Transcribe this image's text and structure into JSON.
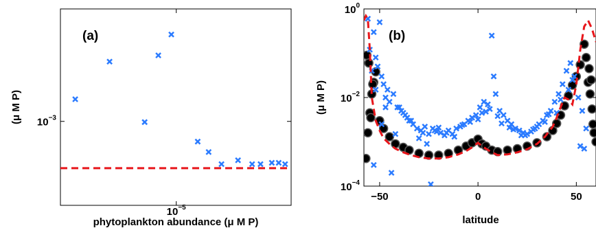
{
  "chart_data": [
    {
      "type": "scatter",
      "panel_label": "(a)",
      "xlabel": "phytoplankton abundance (μ M P)",
      "ylabel": "(μ M P)",
      "xscale": "log",
      "yscale": "log",
      "xlim": [
        3e-06,
        3.3e-05
      ],
      "ylim": [
        0.00032,
        0.0046
      ],
      "xticks": [
        {
          "value": 1e-05,
          "base": "10",
          "exp": "−5"
        }
      ],
      "yticks": [
        {
          "value": 0.001,
          "base": "10",
          "exp": "−3"
        }
      ],
      "grid": false,
      "series": [
        {
          "marker": "x",
          "color": "#2b7bff",
          "x": [
            3.5e-06,
            5e-06,
            7.2e-06,
            8.3e-06,
            9.5e-06,
            1.25e-05,
            1.4e-05,
            1.6e-05,
            1.9e-05,
            2.2e-05,
            2.4e-05,
            2.7e-05,
            2.9e-05,
            3.1e-05
          ],
          "y": [
            0.00135,
            0.00225,
            0.00099,
            0.00245,
            0.00325,
            0.00076,
            0.00066,
            0.00056,
            0.00059,
            0.00056,
            0.00056,
            0.00057,
            0.00057,
            0.00056
          ]
        },
        {
          "style": "dashed-line",
          "color": "#e8161b",
          "x": [
            3e-06,
            3.3e-05
          ],
          "y": [
            0.00053,
            0.00053
          ]
        }
      ]
    },
    {
      "type": "scatter",
      "panel_label": "(b)",
      "xlabel": "latitude",
      "ylabel": "(μ M P)",
      "yscale": "log",
      "xlim": [
        -58,
        60
      ],
      "ylim": [
        0.0001,
        1
      ],
      "xticks": [
        -50,
        0,
        50
      ],
      "yticks": [
        {
          "value": 0.0001,
          "base": "10",
          "exp": "−4"
        },
        {
          "value": 0.01,
          "base": "10",
          "exp": "−2"
        },
        {
          "value": 1,
          "base": "10",
          "exp": "0"
        }
      ],
      "grid": false,
      "series": [
        {
          "marker": "circle",
          "color": "#000000",
          "x": [
            -57,
            -56,
            -55,
            -54,
            -53,
            -52,
            -50,
            -48,
            -45,
            -42,
            -38,
            -35,
            -30,
            -25,
            -20,
            -15,
            -10,
            -6,
            -3,
            0,
            2,
            4,
            7,
            10,
            15,
            20,
            25,
            30,
            35,
            38,
            40,
            42,
            44,
            46,
            48,
            50,
            52,
            54,
            55,
            56,
            57,
            58,
            59,
            60,
            -56.5,
            -55.5,
            -54.5,
            -53.5,
            57.5,
            56.5,
            58.5
          ],
          "y": [
            0.00042,
            0.0016,
            0.0045,
            0.012,
            0.022,
            0.038,
            0.003,
            0.002,
            0.0013,
            0.0009,
            0.00075,
            0.00065,
            0.00055,
            0.0005,
            0.0005,
            0.00055,
            0.00065,
            0.0008,
            0.00095,
            0.00115,
            0.0009,
            0.0008,
            0.00065,
            0.0006,
            0.00065,
            0.0007,
            0.0008,
            0.00095,
            0.0013,
            0.0018,
            0.0026,
            0.004,
            0.0065,
            0.011,
            0.019,
            0.03,
            0.055,
            0.16,
            0.08,
            0.022,
            0.012,
            0.0055,
            0.0016,
            0.001,
            0.09,
            0.06,
            0.0035,
            0.02,
            0.025,
            0.045,
            0.0025
          ]
        },
        {
          "marker": "x",
          "color": "#2b7bff",
          "x": [
            -56,
            -55,
            -54,
            -53,
            -52,
            -51,
            -50,
            -49,
            -48,
            -47,
            -46,
            -45,
            -43,
            -41,
            -39,
            -37,
            -35,
            -33,
            -31,
            -29,
            -27,
            -25,
            -23,
            -21,
            -19,
            -17,
            -15,
            -13,
            -11,
            -9,
            -7,
            -5,
            -3,
            -1,
            1,
            3,
            5,
            7,
            8,
            9,
            11,
            13,
            15,
            17,
            19,
            21,
            23,
            25,
            27,
            29,
            31,
            33,
            35,
            37,
            39,
            41,
            43,
            45,
            47,
            49,
            51,
            53,
            55,
            -53,
            -49,
            -44,
            -40,
            -36,
            -30,
            -26,
            -24,
            -20,
            -12,
            -4,
            2,
            6,
            10,
            16,
            22,
            28,
            34,
            40,
            46,
            52,
            -52,
            -47,
            -42,
            -38,
            -34,
            -28,
            -22,
            -16,
            -8,
            0,
            4,
            12,
            18,
            24,
            30,
            36,
            42,
            48,
            54
          ],
          "y": [
            0.6,
            0.12,
            0.04,
            0.3,
            0.08,
            0.05,
            0.5,
            0.03,
            0.02,
            0.01,
            0.015,
            0.008,
            0.012,
            0.006,
            0.005,
            0.004,
            0.003,
            0.0025,
            0.002,
            0.0018,
            0.0022,
            0.0015,
            0.002,
            0.0017,
            0.0016,
            0.0014,
            0.0018,
            0.0015,
            0.002,
            0.0022,
            0.0025,
            0.003,
            0.0035,
            0.004,
            0.006,
            0.008,
            0.007,
            0.25,
            0.03,
            0.012,
            0.005,
            0.004,
            0.003,
            0.0025,
            0.002,
            0.0018,
            0.0016,
            0.0015,
            0.0017,
            0.002,
            0.0025,
            0.003,
            0.004,
            0.005,
            0.008,
            0.012,
            0.02,
            0.04,
            0.06,
            0.03,
            0.01,
            0.005,
            0.002,
            0.0003,
            0.0025,
            0.0002,
            0.006,
            0.0035,
            0.0012,
            0.0009,
            0.00011,
            0.0021,
            0.0013,
            0.0028,
            0.0045,
            0.0055,
            0.0038,
            0.0021,
            0.0014,
            0.0019,
            0.0028,
            0.0045,
            0.015,
            0.0008,
            0.015,
            0.006,
            0.0015,
            0.0045,
            0.003,
            0.0016,
            0.0018,
            0.0016,
            0.0024,
            0.0032,
            0.0048,
            0.0026,
            0.0019,
            0.0014,
            0.0022,
            0.0042,
            0.009,
            0.025,
            0.0007
          ]
        },
        {
          "style": "dashed-line",
          "color": "#e8161b",
          "x": [
            -58,
            -57,
            -56,
            -55,
            -54,
            -52,
            -50,
            -48,
            -45,
            -42,
            -38,
            -34,
            -30,
            -25,
            -20,
            -15,
            -10,
            -6,
            -3,
            0,
            2,
            4,
            7,
            10,
            15,
            20,
            25,
            30,
            34,
            38,
            40,
            42,
            44,
            46,
            48,
            50,
            52,
            54,
            56,
            58,
            60
          ],
          "y": [
            0.55,
            0.7,
            0.6,
            0.12,
            0.01,
            0.003,
            0.0018,
            0.0012,
            0.0009,
            0.0007,
            0.00058,
            0.0005,
            0.00045,
            0.00042,
            0.00042,
            0.00045,
            0.00052,
            0.00062,
            0.00075,
            0.00095,
            0.0008,
            0.0007,
            0.00058,
            0.0005,
            0.00052,
            0.00058,
            0.00068,
            0.0009,
            0.0013,
            0.0022,
            0.0035,
            0.006,
            0.01,
            0.009,
            0.007,
            0.02,
            0.12,
            0.4,
            0.55,
            0.35,
            0.18
          ]
        }
      ]
    }
  ]
}
